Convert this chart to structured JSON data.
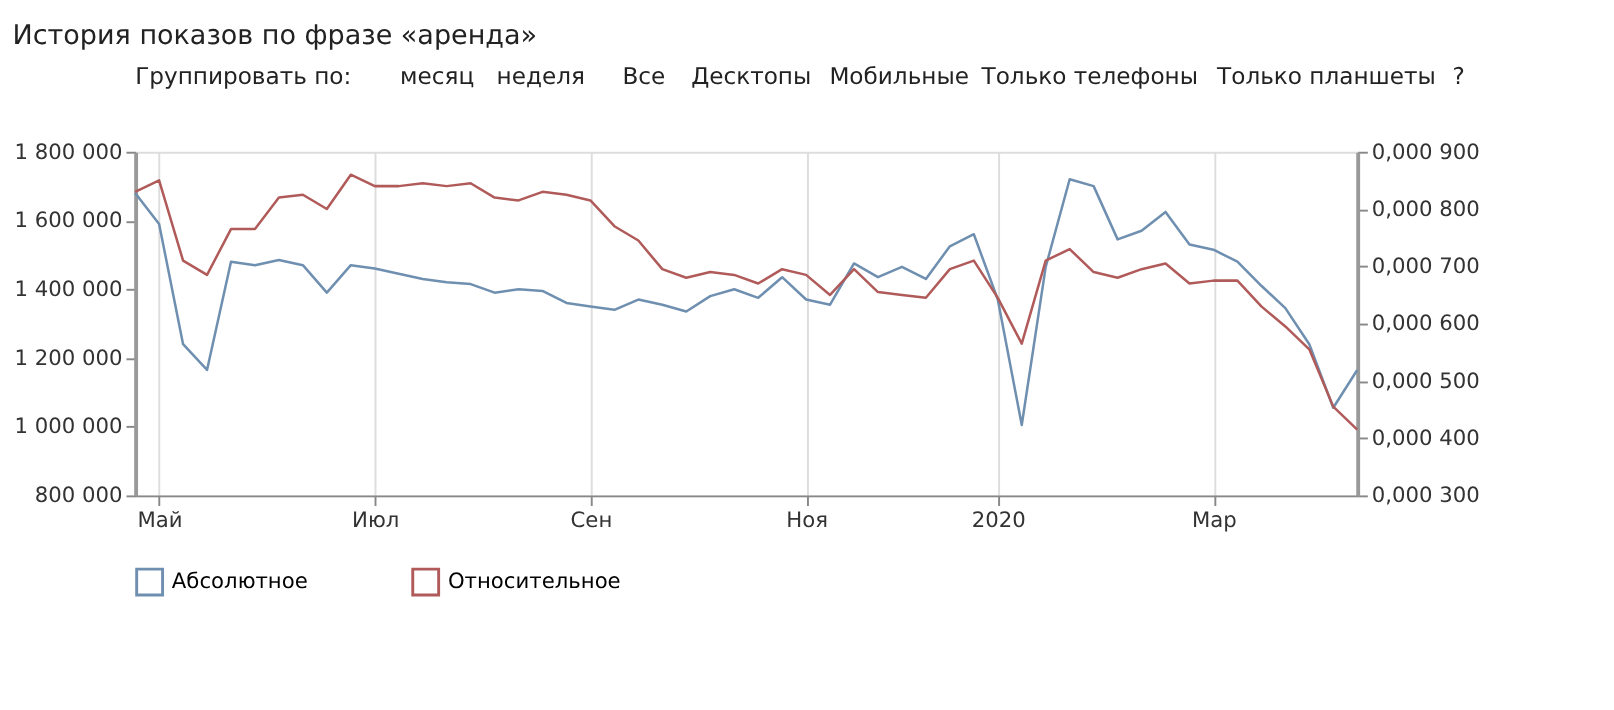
{
  "chart_data": {
    "type": "line",
    "title": "История показов по фразе «аренда»",
    "annotations": [
      "Группировать по:",
      "месяц",
      "неделя",
      "Все",
      "Десктопы",
      "Мобильные",
      "Только телефоны",
      "Только планшеты",
      "?"
    ],
    "categories": [
      null,
      "Май",
      null,
      null,
      null,
      null,
      null,
      null,
      null,
      null,
      "Июл",
      null,
      null,
      null,
      null,
      null,
      null,
      null,
      null,
      "Сен",
      null,
      null,
      null,
      null,
      null,
      null,
      null,
      null,
      "Ноя",
      null,
      null,
      null,
      null,
      null,
      null,
      null,
      "2020",
      null,
      null,
      null,
      null,
      null,
      null,
      null,
      null,
      "Мар",
      null,
      null,
      null,
      null,
      null,
      null
    ],
    "series": [
      {
        "name": "Абсолютное",
        "color": "#6f8fb0",
        "values": [
          1680000,
          1590000,
          1240000,
          1165000,
          1480000,
          1470000,
          1485000,
          1470000,
          1390000,
          1470000,
          1460000,
          1445000,
          1430000,
          1420000,
          1415000,
          1390000,
          1400000,
          1395000,
          1360000,
          1350000,
          1340000,
          1370000,
          1355000,
          1335000,
          1380000,
          1400000,
          1375000,
          1435000,
          1370000,
          1355000,
          1475000,
          1435000,
          1465000,
          1430000,
          1525000,
          1560000,
          1370000,
          1005000,
          1465000,
          1720000,
          1700000,
          1545000,
          1570000,
          1625000,
          1530000,
          1515000,
          1480000,
          1410000,
          1345000,
          1240000,
          1055000,
          1165000
        ]
      },
      {
        "name": "Относительное",
        "color": "#b05a5a",
        "axis": "y2",
        "values": [
          0.00083,
          0.00085,
          0.00071,
          0.000685,
          0.000765,
          0.000765,
          0.00082,
          0.000825,
          0.0008,
          0.00086,
          0.00084,
          0.00084,
          0.000845,
          0.00084,
          0.000845,
          0.00082,
          0.000815,
          0.00083,
          0.000825,
          0.000815,
          0.00077,
          0.000745,
          0.000695,
          0.00068,
          0.00069,
          0.000685,
          0.00067,
          0.000695,
          0.000685,
          0.00065,
          0.000695,
          0.000655,
          0.00065,
          0.000645,
          0.000695,
          0.00071,
          0.000645,
          0.000565,
          0.00071,
          0.00073,
          0.00069,
          0.00068,
          0.000695,
          0.000705,
          0.00067,
          0.000675,
          0.000675,
          0.00063,
          0.000595,
          0.000555,
          0.000455,
          0.000415
        ]
      }
    ],
    "ylim": [
      800000,
      1800000
    ],
    "yticks": [
      {
        "value": 800000,
        "label": "800 000"
      },
      {
        "value": 1000000,
        "label": "1 000 000"
      },
      {
        "value": 1200000,
        "label": "1 200 000"
      },
      {
        "value": 1400000,
        "label": "1 400 000"
      },
      {
        "value": 1600000,
        "label": "1 600 000"
      },
      {
        "value": 1800000,
        "label": "1 800 000"
      }
    ],
    "y2lim": [
      0.0003,
      0.0009
    ],
    "y2ticks": [
      {
        "value": 0.0003,
        "label": "0,000 300"
      },
      {
        "value": 0.0004,
        "label": "0,000 400"
      },
      {
        "value": 0.0005,
        "label": "0,000 500"
      },
      {
        "value": 0.0006,
        "label": "0,000 600"
      },
      {
        "value": 0.0007,
        "label": "0,000 700"
      },
      {
        "value": 0.0008,
        "label": "0,000 800"
      },
      {
        "value": 0.0009,
        "label": "0,000 900"
      }
    ],
    "grid": "x",
    "legend": "bottom",
    "marker": "none",
    "line_style": "solid"
  }
}
